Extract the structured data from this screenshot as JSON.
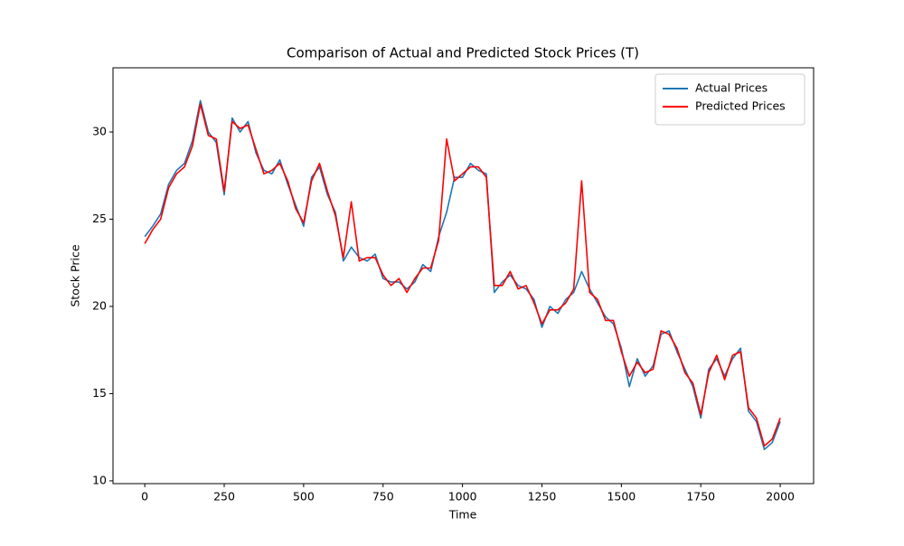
{
  "chart_data": {
    "type": "line",
    "title": "Comparison of Actual and Predicted Stock Prices (T)",
    "x_label": "Time",
    "y_label": "Stock Price",
    "x": [
      0,
      25,
      50,
      75,
      100,
      125,
      150,
      175,
      200,
      225,
      250,
      275,
      300,
      325,
      350,
      375,
      400,
      425,
      450,
      475,
      500,
      525,
      550,
      575,
      600,
      625,
      650,
      675,
      700,
      725,
      750,
      775,
      800,
      825,
      850,
      875,
      900,
      925,
      950,
      975,
      1000,
      1025,
      1050,
      1075,
      1100,
      1125,
      1150,
      1175,
      1200,
      1225,
      1250,
      1275,
      1300,
      1325,
      1350,
      1375,
      1400,
      1425,
      1450,
      1475,
      1500,
      1525,
      1550,
      1575,
      1600,
      1625,
      1650,
      1675,
      1700,
      1725,
      1750,
      1775,
      1800,
      1825,
      1850,
      1875,
      1900,
      1925,
      1950,
      1975,
      2000
    ],
    "series": [
      {
        "name": "Actual Prices",
        "color": "#1f77b4",
        "values": [
          24.0,
          24.6,
          25.3,
          27.0,
          27.8,
          28.2,
          29.5,
          31.8,
          30.0,
          29.4,
          26.4,
          30.8,
          30.0,
          30.6,
          28.8,
          27.8,
          27.6,
          28.4,
          27.0,
          25.8,
          24.6,
          27.4,
          28.0,
          26.4,
          25.4,
          22.6,
          23.4,
          22.8,
          22.6,
          23.0,
          21.6,
          21.4,
          21.4,
          21.0,
          21.4,
          22.4,
          22.0,
          24.0,
          25.4,
          27.4,
          27.4,
          28.2,
          27.8,
          27.6,
          20.8,
          21.4,
          21.8,
          21.2,
          21.0,
          20.4,
          18.8,
          20.0,
          19.6,
          20.4,
          20.8,
          22.0,
          21.0,
          20.2,
          19.4,
          19.0,
          17.6,
          15.4,
          17.0,
          16.0,
          16.6,
          18.4,
          18.6,
          17.4,
          16.4,
          15.4,
          13.6,
          16.4,
          17.0,
          16.0,
          17.0,
          17.6,
          14.0,
          13.4,
          11.8,
          12.2,
          13.4
        ]
      },
      {
        "name": "Predicted Prices",
        "color": "#ff0000",
        "values": [
          23.6,
          24.4,
          25.0,
          26.8,
          27.6,
          28.0,
          29.2,
          31.6,
          29.8,
          29.6,
          26.6,
          30.6,
          30.2,
          30.4,
          29.0,
          27.6,
          27.8,
          28.2,
          27.2,
          25.6,
          24.8,
          27.2,
          28.2,
          26.6,
          25.2,
          22.8,
          26.0,
          22.6,
          22.8,
          22.8,
          21.8,
          21.2,
          21.6,
          20.8,
          21.6,
          22.2,
          22.2,
          23.8,
          29.6,
          27.2,
          27.6,
          28.0,
          28.0,
          27.4,
          21.2,
          21.2,
          22.0,
          21.0,
          21.2,
          20.2,
          19.0,
          19.8,
          19.8,
          20.2,
          21.0,
          27.2,
          20.8,
          20.4,
          19.2,
          19.2,
          17.4,
          16.0,
          16.8,
          16.2,
          16.4,
          18.6,
          18.4,
          17.6,
          16.2,
          15.6,
          13.8,
          16.2,
          17.2,
          15.8,
          17.2,
          17.4,
          14.2,
          13.6,
          12.0,
          12.4,
          13.6
        ]
      }
    ],
    "xlim": [
      -100,
      2105
    ],
    "ylim": [
      9.84,
      33.68
    ],
    "xticks": [
      0,
      250,
      500,
      750,
      1000,
      1250,
      1500,
      1750,
      2000
    ],
    "yticks": [
      10,
      15,
      20,
      25,
      30
    ],
    "legend": "upper right"
  }
}
